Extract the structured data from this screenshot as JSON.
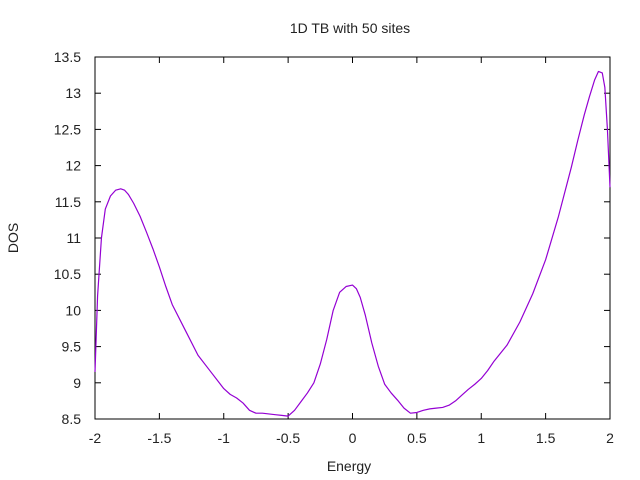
{
  "chart_data": {
    "type": "line",
    "title": "1D TB with 50 sites",
    "xlabel": "Energy",
    "ylabel": "DOS",
    "xlim": [
      -2,
      2
    ],
    "ylim": [
      8.5,
      13.5
    ],
    "xticks": [
      -2,
      -1.5,
      -1,
      -0.5,
      0,
      0.5,
      1,
      1.5,
      2
    ],
    "xtick_labels": [
      "-2",
      "-1.5",
      "-1",
      "-0.5",
      "0",
      "0.5",
      "1",
      "1.5",
      "2"
    ],
    "yticks": [
      8.5,
      9,
      9.5,
      10,
      10.5,
      11,
      11.5,
      12,
      12.5,
      13,
      13.5
    ],
    "ytick_labels": [
      "8.5",
      "9",
      "9.5",
      "10",
      "10.5",
      "11",
      "11.5",
      "12",
      "12.5",
      "13",
      "13.5"
    ],
    "grid": false,
    "legend": "none",
    "series": [
      {
        "color": "#9400d3",
        "x": [
          -2.0,
          -1.98,
          -1.95,
          -1.92,
          -1.88,
          -1.84,
          -1.8,
          -1.77,
          -1.74,
          -1.7,
          -1.65,
          -1.6,
          -1.55,
          -1.5,
          -1.45,
          -1.4,
          -1.3,
          -1.2,
          -1.1,
          -1.0,
          -0.95,
          -0.9,
          -0.85,
          -0.8,
          -0.75,
          -0.7,
          -0.65,
          -0.6,
          -0.55,
          -0.5,
          -0.45,
          -0.4,
          -0.35,
          -0.3,
          -0.25,
          -0.2,
          -0.15,
          -0.1,
          -0.05,
          0.0,
          0.03,
          0.06,
          0.1,
          0.15,
          0.2,
          0.25,
          0.3,
          0.35,
          0.4,
          0.45,
          0.5,
          0.55,
          0.6,
          0.65,
          0.7,
          0.75,
          0.8,
          0.85,
          0.9,
          0.95,
          1.0,
          1.05,
          1.1,
          1.2,
          1.3,
          1.4,
          1.5,
          1.6,
          1.7,
          1.75,
          1.8,
          1.84,
          1.88,
          1.91,
          1.94,
          1.96,
          1.98,
          2.0
        ],
        "y": [
          9.15,
          10.2,
          11.0,
          11.4,
          11.58,
          11.66,
          11.68,
          11.66,
          11.6,
          11.48,
          11.3,
          11.08,
          10.85,
          10.6,
          10.33,
          10.08,
          9.73,
          9.38,
          9.15,
          8.92,
          8.84,
          8.79,
          8.72,
          8.62,
          8.58,
          8.58,
          8.57,
          8.56,
          8.55,
          8.54,
          8.62,
          8.74,
          8.86,
          9.0,
          9.26,
          9.6,
          10.0,
          10.25,
          10.33,
          10.35,
          10.3,
          10.18,
          9.93,
          9.55,
          9.23,
          8.98,
          8.86,
          8.76,
          8.65,
          8.58,
          8.59,
          8.62,
          8.64,
          8.65,
          8.66,
          8.69,
          8.75,
          8.83,
          8.91,
          8.98,
          9.06,
          9.17,
          9.3,
          9.52,
          9.84,
          10.23,
          10.7,
          11.3,
          11.98,
          12.35,
          12.7,
          12.95,
          13.18,
          13.3,
          13.28,
          13.08,
          12.5,
          11.7
        ]
      }
    ]
  }
}
